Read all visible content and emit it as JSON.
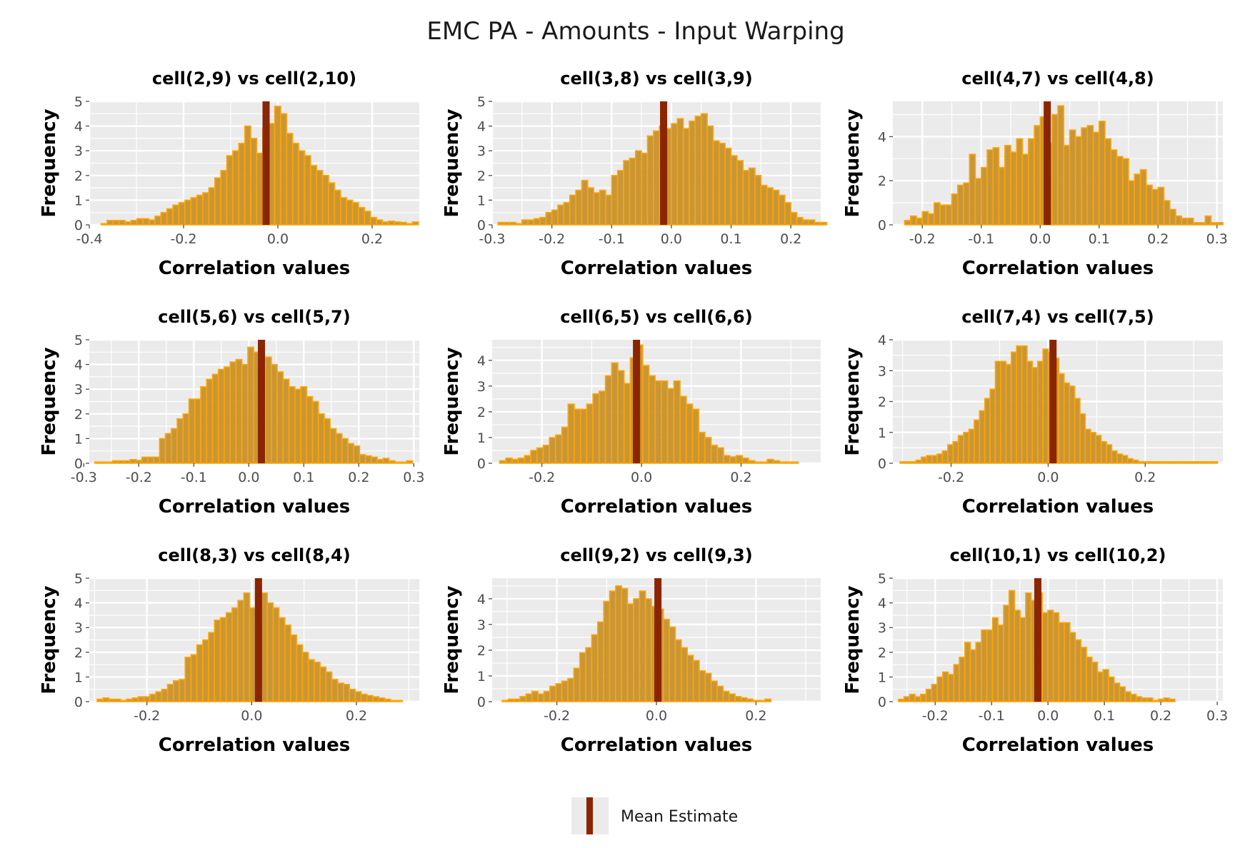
{
  "figure": {
    "title": "EMC PA - Amounts - Input Warping",
    "legend_label": "Mean Estimate",
    "colors": {
      "panel_background": "#ebebeb",
      "grid": "#ffffff",
      "bar_fill": "#c8922e",
      "bar_outline": "#ffa500",
      "mean_line": "#8b2500",
      "tick": "#4d4d4d"
    }
  },
  "chart_data": [
    {
      "type": "bar",
      "title": "cell(2,9) vs cell(2,10)",
      "xlabel": "Correlation values",
      "ylabel": "Frequency",
      "xlim": [
        -0.4,
        0.3
      ],
      "ylim": [
        0,
        5
      ],
      "x_ticks": [
        -0.4,
        -0.2,
        0.0,
        0.2
      ],
      "x_tick_labels": [
        "-0.4",
        "-0.2",
        "0.0",
        "0.2"
      ],
      "y_ticks": [
        0,
        1,
        2,
        3,
        4,
        5
      ],
      "y_tick_labels": [
        "0",
        "1",
        "2",
        "3",
        "4",
        "5"
      ],
      "bin_start": -0.375,
      "bin_width": 0.0127,
      "mean": -0.025,
      "values": [
        0.05,
        0.18,
        0.18,
        0.18,
        0.12,
        0.18,
        0.25,
        0.25,
        0.2,
        0.35,
        0.5,
        0.65,
        0.8,
        0.9,
        1.0,
        1.1,
        1.2,
        1.3,
        1.5,
        1.9,
        2.2,
        2.8,
        3.0,
        3.3,
        4.0,
        3.5,
        2.9,
        3.9,
        4.1,
        4.8,
        4.5,
        3.7,
        3.3,
        3.0,
        2.8,
        2.4,
        2.2,
        2.0,
        1.7,
        1.4,
        1.1,
        1.0,
        0.9,
        0.7,
        0.55,
        0.3,
        0.2,
        0.12,
        0.15,
        0.12,
        0.1,
        0.05,
        0.12
      ]
    },
    {
      "type": "bar",
      "title": "cell(3,8) vs cell(3,9)",
      "xlabel": "Correlation values",
      "ylabel": "Frequency",
      "xlim": [
        -0.3,
        0.25
      ],
      "ylim": [
        0,
        5
      ],
      "x_ticks": [
        -0.3,
        -0.2,
        -0.1,
        0.0,
        0.1,
        0.2
      ],
      "x_tick_labels": [
        "-0.3",
        "-0.2",
        "-0.1",
        "0.0",
        "0.1",
        "0.2"
      ],
      "y_ticks": [
        0,
        1,
        2,
        3,
        4,
        5
      ],
      "y_tick_labels": [
        "0",
        "1",
        "2",
        "3",
        "4",
        "5"
      ],
      "bin_start": -0.29,
      "bin_width": 0.01,
      "mean": -0.013,
      "values": [
        0.1,
        0.1,
        0.1,
        0.05,
        0.2,
        0.2,
        0.25,
        0.3,
        0.5,
        0.6,
        0.8,
        0.9,
        1.2,
        1.4,
        1.8,
        1.5,
        1.3,
        1.4,
        1.2,
        2.0,
        2.2,
        2.6,
        2.7,
        3.0,
        2.9,
        3.6,
        3.8,
        4.0,
        3.9,
        4.1,
        4.3,
        3.9,
        4.2,
        4.4,
        4.5,
        4.0,
        3.4,
        3.3,
        3.1,
        2.8,
        2.6,
        2.2,
        2.3,
        2.0,
        1.6,
        1.5,
        1.4,
        1.2,
        0.9,
        0.5,
        0.3,
        0.2,
        0.2,
        0.1,
        0.1
      ]
    },
    {
      "type": "bar",
      "title": "cell(4,7) vs cell(4,8)",
      "xlabel": "Correlation values",
      "ylabel": "Frequency",
      "xlim": [
        -0.25,
        0.31
      ],
      "ylim": [
        0,
        5.6
      ],
      "x_ticks": [
        -0.2,
        -0.1,
        0.0,
        0.1,
        0.2,
        0.3
      ],
      "x_tick_labels": [
        "-0.2",
        "-0.1",
        "0.0",
        "0.1",
        "0.2",
        "0.3"
      ],
      "y_ticks": [
        0,
        2,
        4
      ],
      "y_tick_labels": [
        "0",
        "2",
        "4"
      ],
      "bin_start": -0.23,
      "bin_width": 0.01,
      "mean": 0.012,
      "values": [
        0.2,
        0.4,
        0.3,
        0.6,
        0.5,
        1.0,
        0.9,
        0.9,
        1.4,
        1.8,
        1.9,
        3.2,
        2.1,
        2.6,
        3.4,
        3.5,
        2.6,
        3.6,
        3.3,
        3.9,
        3.2,
        3.9,
        4.5,
        4.9,
        3.7,
        5.0,
        5.4,
        3.6,
        4.3,
        4.0,
        4.4,
        4.5,
        4.2,
        4.7,
        3.9,
        3.4,
        3.1,
        3.0,
        2.0,
        2.3,
        2.5,
        1.8,
        1.6,
        1.7,
        1.1,
        0.7,
        0.4,
        0.3,
        0.3,
        0.1,
        0.1,
        0.4,
        0.1,
        0.1
      ]
    },
    {
      "type": "bar",
      "title": "cell(5,6) vs cell(5,7)",
      "xlabel": "Correlation values",
      "ylabel": "Frequency",
      "xlim": [
        -0.29,
        0.31
      ],
      "ylim": [
        0,
        5
      ],
      "x_ticks": [
        -0.3,
        -0.2,
        -0.1,
        0.0,
        0.1,
        0.2,
        0.3
      ],
      "x_tick_labels": [
        "-0.3",
        "-0.2",
        "-0.1",
        "0.0",
        "0.1",
        "0.2",
        "0.3"
      ],
      "y_ticks": [
        0,
        1,
        2,
        3,
        4,
        5
      ],
      "y_tick_labels": [
        "0",
        "1",
        "2",
        "3",
        "4",
        "5"
      ],
      "bin_start": -0.28,
      "bin_width": 0.0107,
      "mean": 0.023,
      "values": [
        0.05,
        0.05,
        0.05,
        0.1,
        0.1,
        0.1,
        0.15,
        0.12,
        0.25,
        0.25,
        0.25,
        1.0,
        1.2,
        1.4,
        1.8,
        2.0,
        2.6,
        2.6,
        3.1,
        3.4,
        3.6,
        3.8,
        3.9,
        4.1,
        4.2,
        4.0,
        4.7,
        4.5,
        3.9,
        4.3,
        4.0,
        3.7,
        3.4,
        3.1,
        3.0,
        3.1,
        2.7,
        2.5,
        2.0,
        1.8,
        1.4,
        1.2,
        1.0,
        0.8,
        0.7,
        0.35,
        0.3,
        0.25,
        0.15,
        0.2,
        0.1,
        0.05,
        0.05,
        0.1
      ]
    },
    {
      "type": "bar",
      "title": "cell(6,5) vs cell(6,6)",
      "xlabel": "Correlation values",
      "ylabel": "Frequency",
      "xlim": [
        -0.3,
        0.36
      ],
      "ylim": [
        0,
        4.8
      ],
      "x_ticks": [
        -0.2,
        0.0,
        0.2
      ],
      "x_tick_labels": [
        "-0.2",
        "0.0",
        "0.2"
      ],
      "y_ticks": [
        0,
        1,
        2,
        3,
        4
      ],
      "y_tick_labels": [
        "0",
        "1",
        "2",
        "3",
        "4"
      ],
      "bin_start": -0.285,
      "bin_width": 0.0125,
      "mean": -0.01,
      "values": [
        0.1,
        0.2,
        0.15,
        0.2,
        0.3,
        0.5,
        0.6,
        0.7,
        1.0,
        1.1,
        1.4,
        2.3,
        2.1,
        2.1,
        2.3,
        2.7,
        2.8,
        3.4,
        3.9,
        3.6,
        3.1,
        4.1,
        4.6,
        3.8,
        3.4,
        3.2,
        3.2,
        2.9,
        3.2,
        2.6,
        2.3,
        2.1,
        1.2,
        1.0,
        0.7,
        0.6,
        0.3,
        0.25,
        0.3,
        0.2,
        0.1,
        0.05,
        0.05,
        0.15,
        0.1,
        0.05,
        0.05,
        0.05
      ]
    },
    {
      "type": "bar",
      "title": "cell(7,4) vs cell(7,5)",
      "xlabel": "Correlation values",
      "ylabel": "Frequency",
      "xlim": [
        -0.32,
        0.36
      ],
      "ylim": [
        0,
        4
      ],
      "x_ticks": [
        -0.2,
        0.0,
        0.2
      ],
      "x_tick_labels": [
        "-0.2",
        "0.0",
        "0.2"
      ],
      "y_ticks": [
        0,
        1,
        2,
        3,
        4
      ],
      "y_tick_labels": [
        "0",
        "1",
        "2",
        "3",
        "4"
      ],
      "bin_start": -0.305,
      "bin_width": 0.0109,
      "mean": 0.01,
      "values": [
        0.05,
        0.05,
        0.05,
        0.1,
        0.2,
        0.25,
        0.25,
        0.3,
        0.4,
        0.6,
        0.7,
        0.9,
        1.0,
        1.1,
        1.4,
        1.7,
        2.1,
        2.4,
        3.3,
        3.3,
        3.2,
        3.6,
        3.8,
        3.8,
        3.3,
        3.1,
        3.3,
        3.7,
        3.6,
        3.4,
        2.9,
        2.6,
        2.5,
        2.1,
        1.6,
        1.1,
        1.0,
        0.9,
        0.7,
        0.6,
        0.4,
        0.3,
        0.25,
        0.15,
        0.1,
        0.05,
        0.05,
        0.05,
        0.05,
        0.05,
        0.05,
        0.05,
        0.05,
        0.05,
        0.05,
        0.05,
        0.05,
        0.05,
        0.05,
        0.05
      ]
    },
    {
      "type": "bar",
      "title": "cell(8,3) vs cell(8,4)",
      "xlabel": "Correlation values",
      "ylabel": "Frequency",
      "xlim": [
        -0.31,
        0.32
      ],
      "ylim": [
        0,
        5
      ],
      "x_ticks": [
        -0.2,
        0.0,
        0.2
      ],
      "x_tick_labels": [
        "-0.2",
        "0.0",
        "0.2"
      ],
      "y_ticks": [
        0,
        1,
        2,
        3,
        4,
        5
      ],
      "y_tick_labels": [
        "0",
        "1",
        "2",
        "3",
        "4",
        "5"
      ],
      "bin_start": -0.295,
      "bin_width": 0.0112,
      "mean": 0.013,
      "values": [
        0.1,
        0.15,
        0.1,
        0.1,
        0.05,
        0.1,
        0.15,
        0.2,
        0.2,
        0.3,
        0.4,
        0.5,
        0.7,
        0.85,
        0.9,
        1.8,
        1.9,
        2.3,
        2.5,
        2.8,
        3.3,
        3.4,
        3.6,
        3.8,
        4.1,
        4.4,
        3.8,
        4.7,
        4.4,
        4.0,
        3.8,
        3.4,
        3.1,
        2.7,
        2.3,
        2.0,
        1.7,
        1.6,
        1.4,
        1.2,
        0.9,
        0.75,
        0.7,
        0.5,
        0.4,
        0.3,
        0.25,
        0.2,
        0.15,
        0.1,
        0.05,
        0.05
      ]
    },
    {
      "type": "bar",
      "title": "cell(9,2) vs cell(9,3)",
      "xlabel": "Correlation values",
      "ylabel": "Frequency",
      "xlim": [
        -0.33,
        0.33
      ],
      "ylim": [
        0,
        4.8
      ],
      "x_ticks": [
        -0.2,
        0.0,
        0.2
      ],
      "x_tick_labels": [
        "-0.2",
        "0.0",
        "0.2"
      ],
      "y_ticks": [
        0,
        1,
        2,
        3,
        4
      ],
      "y_tick_labels": [
        "0",
        "1",
        "2",
        "3",
        "4"
      ],
      "bin_start": -0.31,
      "bin_width": 0.012,
      "mean": 0.003,
      "values": [
        0.05,
        0.1,
        0.1,
        0.2,
        0.3,
        0.4,
        0.3,
        0.4,
        0.6,
        0.7,
        0.8,
        0.9,
        1.3,
        1.9,
        2.1,
        2.6,
        3.1,
        3.9,
        4.3,
        4.5,
        4.4,
        3.8,
        4.0,
        4.3,
        4.0,
        3.7,
        3.6,
        3.2,
        2.9,
        2.4,
        2.1,
        1.8,
        1.6,
        1.2,
        1.1,
        0.8,
        0.6,
        0.4,
        0.3,
        0.2,
        0.15,
        0.1,
        0.05,
        0.05,
        0.1
      ]
    },
    {
      "type": "bar",
      "title": "cell(10,1) vs cell(10,2)",
      "xlabel": "Correlation values",
      "ylabel": "Frequency",
      "xlim": [
        -0.275,
        0.31
      ],
      "ylim": [
        0,
        5
      ],
      "x_ticks": [
        -0.2,
        -0.1,
        0.0,
        0.1,
        0.2,
        0.3
      ],
      "x_tick_labels": [
        "-0.2",
        "-0.1",
        "0.0",
        "0.1",
        "0.2",
        "0.3"
      ],
      "y_ticks": [
        0,
        1,
        2,
        3,
        4,
        5
      ],
      "y_tick_labels": [
        "0",
        "1",
        "2",
        "3",
        "4",
        "5"
      ],
      "bin_start": -0.265,
      "bin_width": 0.0098,
      "mean": -0.018,
      "values": [
        0.1,
        0.2,
        0.3,
        0.2,
        0.3,
        0.5,
        0.7,
        1.0,
        1.2,
        1.1,
        1.5,
        1.8,
        2.4,
        2.1,
        2.4,
        2.9,
        2.9,
        3.4,
        3.1,
        3.9,
        4.5,
        3.7,
        3.4,
        4.4,
        4.1,
        4.4,
        3.6,
        3.7,
        3.6,
        3.2,
        3.2,
        2.8,
        2.5,
        2.2,
        1.8,
        1.6,
        1.2,
        1.3,
        1.0,
        0.75,
        0.6,
        0.4,
        0.3,
        0.2,
        0.15,
        0.15,
        0.05,
        0.1,
        0.15,
        0.1
      ]
    }
  ]
}
